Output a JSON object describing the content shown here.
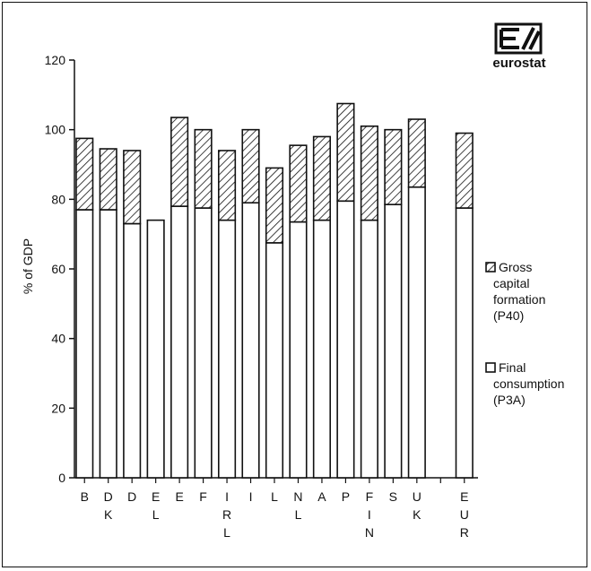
{
  "chart_data": {
    "type": "bar",
    "stacked": true,
    "ylabel": "% of GDP",
    "ylim": [
      0,
      120
    ],
    "yticks": [
      0,
      20,
      40,
      60,
      80,
      100,
      120
    ],
    "categories": [
      "B",
      "DK",
      "D",
      "EL",
      "E",
      "F",
      "IRL",
      "I",
      "L",
      "NL",
      "A",
      "P",
      "FIN",
      "S",
      "UK",
      "",
      "EUR"
    ],
    "series": [
      {
        "name": "Final consumption (P3A)",
        "legend_lines": [
          "Final",
          "consumption",
          "(P3A)"
        ],
        "fill": "white",
        "values": [
          77,
          77,
          73,
          74,
          78,
          77.5,
          74,
          79,
          67.5,
          73.5,
          74,
          79.5,
          74,
          78.5,
          83.5,
          null,
          77.5
        ]
      },
      {
        "name": "Gross capital formation (P40)",
        "legend_lines": [
          "Gross",
          "capital",
          "formation",
          "(P40)"
        ],
        "fill": "hatched",
        "values": [
          20.5,
          17.5,
          21,
          0,
          25.5,
          22.5,
          20,
          21,
          21.5,
          22,
          24,
          28,
          27,
          21.5,
          19.5,
          null,
          21.5
        ]
      }
    ],
    "legend_position": "right",
    "grid": false
  },
  "logo": {
    "text": "eurostat"
  }
}
